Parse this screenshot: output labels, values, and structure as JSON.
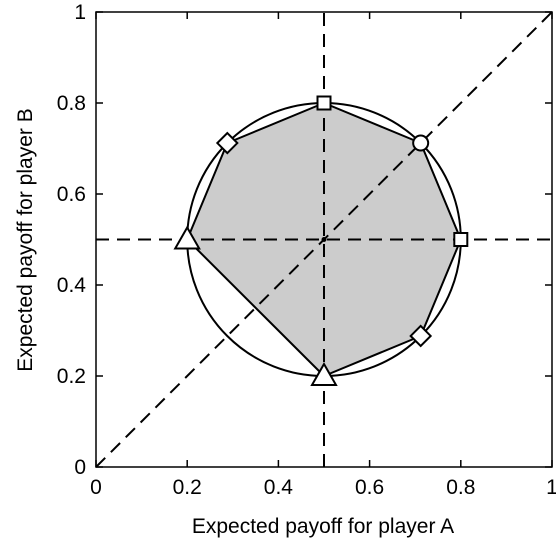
{
  "chart_data": {
    "type": "scatter",
    "xlabel": "Expected payoff for player A",
    "ylabel": "Expected payoff for player B",
    "xlim": [
      0,
      1
    ],
    "ylim": [
      0,
      1
    ],
    "xticks": [
      {
        "value": 0,
        "label": "0"
      },
      {
        "value": 0.2,
        "label": "0.2"
      },
      {
        "value": 0.4,
        "label": "0.4"
      },
      {
        "value": 0.6,
        "label": "0.6"
      },
      {
        "value": 0.8,
        "label": "0.8"
      },
      {
        "value": 1,
        "label": "1"
      }
    ],
    "yticks": [
      {
        "value": 0,
        "label": "0"
      },
      {
        "value": 0.2,
        "label": "0.2"
      },
      {
        "value": 0.4,
        "label": "0.4"
      },
      {
        "value": 0.6,
        "label": "0.6"
      },
      {
        "value": 0.8,
        "label": "0.8"
      },
      {
        "value": 1,
        "label": "1"
      }
    ],
    "grid": false,
    "circle": {
      "center": [
        0.5,
        0.5
      ],
      "radius": 0.3
    },
    "shaded_region": {
      "fill": "#cccccc",
      "vertices": [
        [
          0.2,
          0.5
        ],
        [
          0.288,
          0.712
        ],
        [
          0.5,
          0.8
        ],
        [
          0.712,
          0.712
        ],
        [
          0.8,
          0.5
        ],
        [
          0.712,
          0.288
        ],
        [
          0.5,
          0.2
        ]
      ]
    },
    "dashed_lines": [
      {
        "from": [
          0.5,
          0
        ],
        "to": [
          0.5,
          1
        ]
      },
      {
        "from": [
          0,
          0.5
        ],
        "to": [
          1,
          0.5
        ]
      },
      {
        "from": [
          0,
          0
        ],
        "to": [
          1,
          1
        ]
      }
    ],
    "center_point": [
      0.5,
      0.5
    ],
    "markers": [
      {
        "shape": "triangle",
        "x": 0.2,
        "y": 0.5
      },
      {
        "shape": "triangle",
        "x": 0.5,
        "y": 0.2
      },
      {
        "shape": "diamond",
        "x": 0.288,
        "y": 0.712
      },
      {
        "shape": "diamond",
        "x": 0.712,
        "y": 0.288
      },
      {
        "shape": "square",
        "x": 0.5,
        "y": 0.8
      },
      {
        "shape": "square",
        "x": 0.8,
        "y": 0.5
      },
      {
        "shape": "circle",
        "x": 0.712,
        "y": 0.712
      }
    ]
  }
}
